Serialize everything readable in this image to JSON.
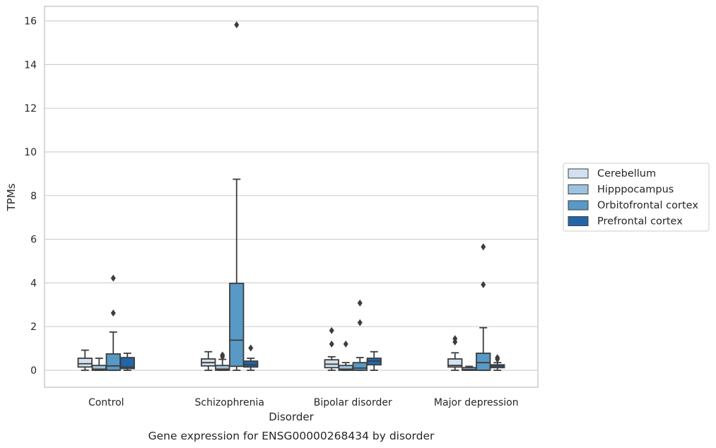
{
  "caption": "Gene expression for ENSG00000268434 by disorder",
  "colors": {
    "Cerebellum": "#d2e1ef",
    "Hipppocampus": "#9dc3de",
    "Orbitofrontal cortex": "#5899c5",
    "Prefrontal cortex": "#2266a8",
    "box_edge": "#3d3d3d",
    "grid": "#d0d0d0",
    "frame": "#cccccc"
  },
  "chart_data": {
    "type": "box",
    "xlabel": "Disorder",
    "ylabel": "TPMs",
    "ylim": [
      -0.8,
      16.6
    ],
    "yticks": [
      0,
      2,
      4,
      6,
      8,
      10,
      12,
      14,
      16
    ],
    "grid": "horizontal",
    "legend_position": "right",
    "categories": [
      "Control",
      "Schizophrenia",
      "Bipolar disorder",
      "Major depression"
    ],
    "series": [
      {
        "name": "Cerebellum",
        "boxes": [
          {
            "whislo": 0.0,
            "q1": 0.15,
            "med": 0.3,
            "q3": 0.55,
            "whishi": 0.92,
            "fliers": []
          },
          {
            "whislo": 0.0,
            "q1": 0.2,
            "med": 0.35,
            "q3": 0.52,
            "whishi": 0.85,
            "fliers": []
          },
          {
            "whislo": 0.0,
            "q1": 0.12,
            "med": 0.28,
            "q3": 0.48,
            "whishi": 0.62,
            "fliers": [
              1.2,
              1.82
            ]
          },
          {
            "whislo": 0.0,
            "q1": 0.15,
            "med": 0.22,
            "q3": 0.52,
            "whishi": 0.8,
            "fliers": [
              1.3,
              1.45
            ]
          }
        ]
      },
      {
        "name": "Hipppocampus",
        "boxes": [
          {
            "whislo": 0.0,
            "q1": 0.0,
            "med": 0.05,
            "q3": 0.22,
            "whishi": 0.55,
            "fliers": []
          },
          {
            "whislo": 0.0,
            "q1": 0.0,
            "med": 0.05,
            "q3": 0.22,
            "whishi": 0.5,
            "fliers": [
              0.62,
              0.7
            ]
          },
          {
            "whislo": 0.0,
            "q1": 0.0,
            "med": 0.05,
            "q3": 0.22,
            "whishi": 0.35,
            "fliers": [
              1.2
            ]
          },
          {
            "whislo": 0.0,
            "q1": 0.0,
            "med": 0.03,
            "q3": 0.12,
            "whishi": 0.18,
            "fliers": []
          }
        ]
      },
      {
        "name": "Orbitofrontal cortex",
        "boxes": [
          {
            "whislo": 0.0,
            "q1": 0.0,
            "med": 0.2,
            "q3": 0.75,
            "whishi": 1.75,
            "fliers": [
              2.62,
              4.22
            ]
          },
          {
            "whislo": 0.0,
            "q1": 0.18,
            "med": 1.38,
            "q3": 3.98,
            "whishi": 8.75,
            "fliers": [
              15.82
            ]
          },
          {
            "whislo": 0.0,
            "q1": 0.0,
            "med": 0.1,
            "q3": 0.35,
            "whishi": 0.58,
            "fliers": [
              2.18,
              3.08
            ]
          },
          {
            "whislo": 0.0,
            "q1": 0.0,
            "med": 0.35,
            "q3": 0.78,
            "whishi": 1.95,
            "fliers": [
              3.92,
              5.65
            ]
          }
        ]
      },
      {
        "name": "Prefrontal cortex",
        "boxes": [
          {
            "whislo": 0.0,
            "q1": 0.08,
            "med": 0.15,
            "q3": 0.58,
            "whishi": 0.78,
            "fliers": []
          },
          {
            "whislo": 0.0,
            "q1": 0.15,
            "med": 0.25,
            "q3": 0.42,
            "whishi": 0.55,
            "fliers": [
              1.02
            ]
          },
          {
            "whislo": 0.0,
            "q1": 0.25,
            "med": 0.42,
            "q3": 0.55,
            "whishi": 0.85,
            "fliers": []
          },
          {
            "whislo": 0.0,
            "q1": 0.12,
            "med": 0.2,
            "q3": 0.25,
            "whishi": 0.35,
            "fliers": [
              0.5,
              0.58
            ]
          }
        ]
      }
    ]
  }
}
